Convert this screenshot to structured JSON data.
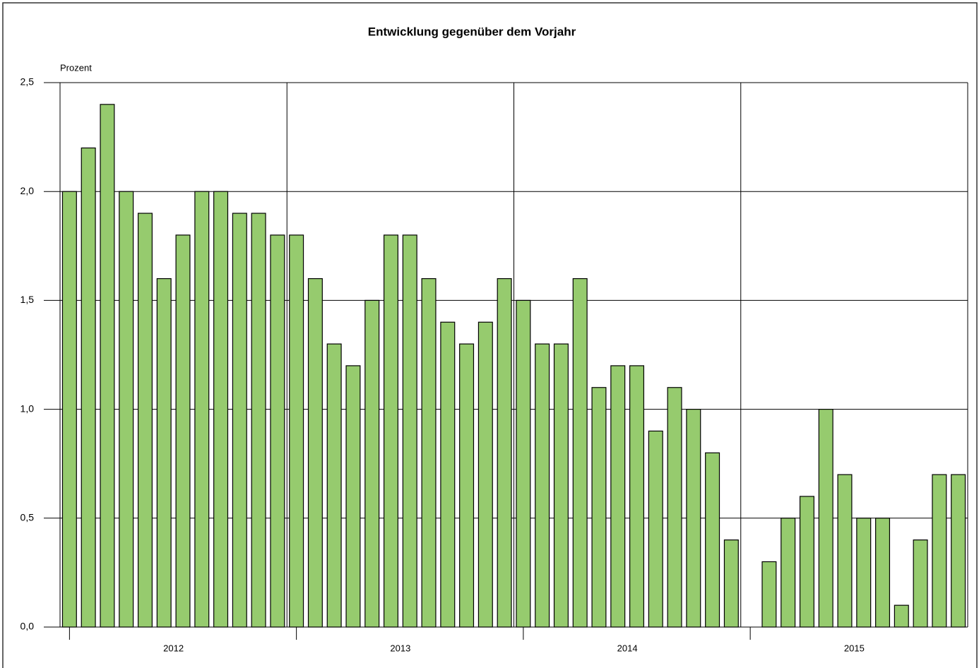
{
  "chart_data": {
    "type": "bar",
    "title": "Entwicklung gegenüber dem Vorjahr",
    "y_label": "Prozent",
    "color": "#96cb6e",
    "groups": [
      "2012",
      "2013",
      "2014",
      "2015"
    ],
    "values": [
      2.0,
      2.2,
      2.4,
      2.0,
      1.9,
      1.6,
      1.8,
      2.0,
      2.0,
      1.9,
      1.9,
      1.8,
      1.8,
      1.6,
      1.3,
      1.2,
      1.5,
      1.8,
      1.8,
      1.6,
      1.4,
      1.3,
      1.4,
      1.6,
      1.5,
      1.3,
      1.3,
      1.6,
      1.1,
      1.2,
      1.2,
      0.9,
      1.1,
      1.0,
      0.8,
      0.4,
      null,
      0.3,
      0.5,
      0.6,
      1.0,
      0.7,
      0.5,
      0.5,
      0.1,
      0.4,
      0.7,
      0.7
    ],
    "ylim": [
      0,
      2.5
    ],
    "yticks": [
      {
        "value": 0,
        "label": "0,0"
      },
      {
        "value": 0.5,
        "label": "0,5"
      },
      {
        "value": 1,
        "label": "1,0"
      },
      {
        "value": 1.5,
        "label": "1,5"
      },
      {
        "value": 2,
        "label": "2,0"
      },
      {
        "value": 2.5,
        "label": "2,5"
      }
    ],
    "grid": true
  }
}
